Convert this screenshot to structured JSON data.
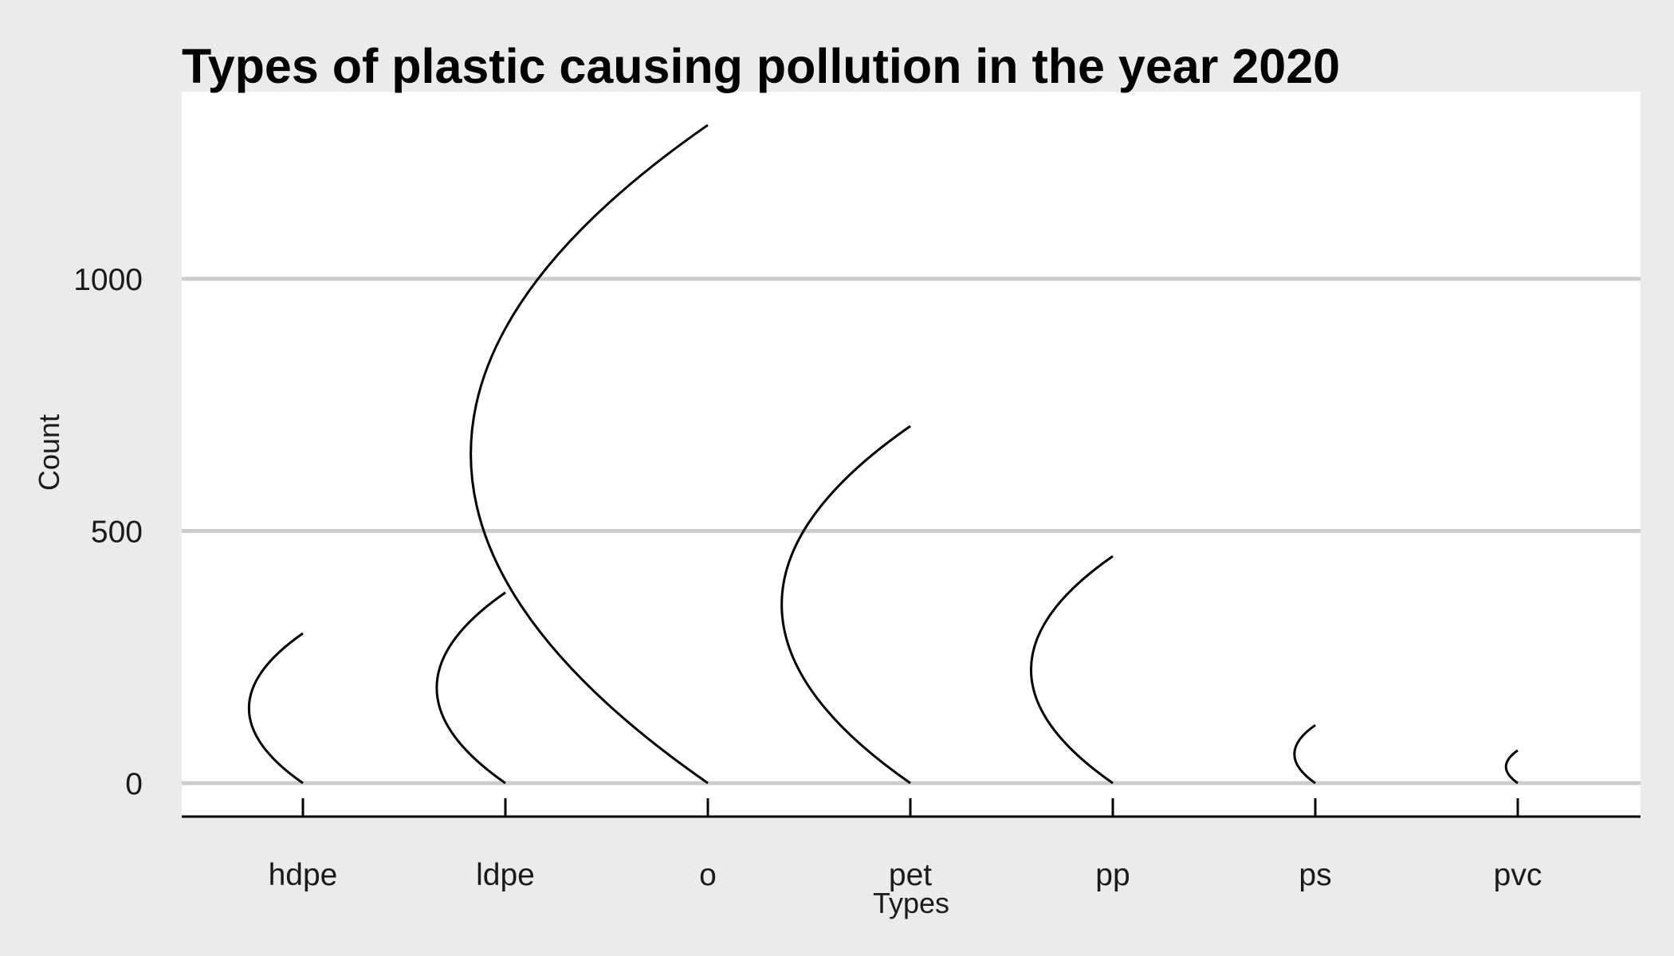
{
  "chart_data": {
    "type": "line",
    "title": "Types of plastic causing pollution in the year 2020",
    "xlabel": "Types",
    "ylabel": "Count",
    "categories": [
      "hdpe",
      "ldpe",
      "o",
      "pet",
      "pp",
      "ps",
      "pvc"
    ],
    "values": [
      297,
      378,
      1305,
      708,
      450,
      115,
      65
    ],
    "y_ticks": [
      0,
      500,
      1000
    ],
    "y_tick_labels": [
      "0",
      "500",
      "1000"
    ],
    "ylim": [
      -65,
      1370
    ],
    "grid": "horizontal major",
    "legend": "none",
    "colors": {
      "background": "#ebebeb",
      "panel": "#ffffff",
      "grid": "#cccccc",
      "line": "#000000"
    }
  }
}
